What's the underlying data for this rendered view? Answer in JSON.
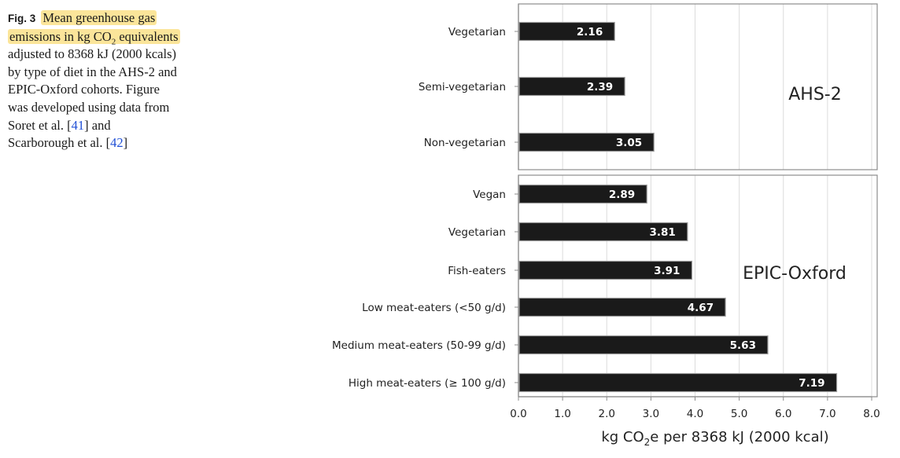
{
  "caption": {
    "fig_label": "Fig. 3",
    "highlight_part1": "Mean greenhouse gas",
    "highlight_part2_pre": "emissions in kg CO",
    "highlight_part2_sub": "2",
    "highlight_part2_post": " equivalents",
    "line_rest1": "adjusted to 8368 kJ (2000 kcals)",
    "line_rest2": "by type of diet in the AHS-2 and",
    "line_rest3": "EPIC-Oxford cohorts. Figure",
    "line_rest4": "was developed using data from",
    "line_rest5_pre": "Soret et al. [",
    "ref1": "41",
    "line_rest5_post": "] and",
    "line_rest6_pre": "Scarborough et al. [",
    "ref2": "42",
    "line_rest6_post": "]"
  },
  "chart_data": {
    "type": "bar",
    "orientation": "horizontal",
    "xlabel_pre": "kg CO",
    "xlabel_sub": "2",
    "xlabel_post": "e per 8368 kJ (2000 kcal)",
    "xlim": [
      0,
      8
    ],
    "xticks": [
      "0.0",
      "1.0",
      "2.0",
      "3.0",
      "4.0",
      "5.0",
      "6.0",
      "7.0",
      "8.0"
    ],
    "grid": true,
    "bar_color": "#1a1a1a",
    "panels": [
      {
        "name": "AHS-2",
        "categories": [
          "Vegetarian",
          "Semi-vegetarian",
          "Non-vegetarian"
        ],
        "values": [
          2.16,
          2.39,
          3.05
        ],
        "labels": [
          "2.16",
          "2.39",
          "3.05"
        ]
      },
      {
        "name": "EPIC-Oxford",
        "categories": [
          "Vegan",
          "Vegetarian",
          "Fish-eaters",
          "Low meat-eaters (<50 g/d)",
          "Medium meat-eaters (50-99 g/d)",
          "High meat-eaters (≥ 100 g/d)"
        ],
        "values": [
          2.89,
          3.81,
          3.91,
          4.67,
          5.63,
          7.19
        ],
        "labels": [
          "2.89",
          "3.81",
          "3.91",
          "4.67",
          "5.63",
          "7.19"
        ]
      }
    ]
  }
}
